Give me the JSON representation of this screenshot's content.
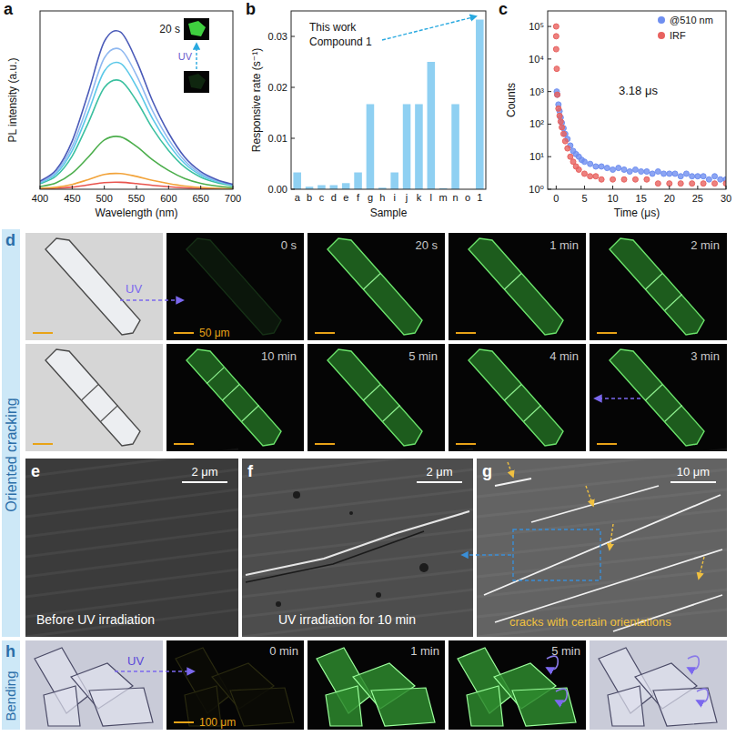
{
  "chart_data": [
    {
      "panel_label": "a",
      "type": "line",
      "x_label": "Wavelength (nm)",
      "y_label": "PL intensity (a.u.)",
      "x": [
        400,
        425,
        450,
        475,
        500,
        525,
        550,
        575,
        600,
        625,
        650,
        675,
        700
      ],
      "series": [
        {
          "color": "#e8544e",
          "values": [
            0.002,
            0.005,
            0.012,
            0.024,
            0.037,
            0.039,
            0.032,
            0.022,
            0.014,
            0.008,
            0.004,
            0.002,
            0.001
          ]
        },
        {
          "color": "#f2a33a",
          "values": [
            0.005,
            0.011,
            0.027,
            0.054,
            0.083,
            0.088,
            0.072,
            0.05,
            0.032,
            0.018,
            0.01,
            0.005,
            0.003
          ]
        },
        {
          "color": "#4cae4c",
          "values": [
            0.015,
            0.036,
            0.09,
            0.18,
            0.276,
            0.294,
            0.24,
            0.165,
            0.105,
            0.06,
            0.033,
            0.018,
            0.009
          ]
        },
        {
          "color": "#3cc0a0",
          "values": [
            0.031,
            0.074,
            0.186,
            0.372,
            0.57,
            0.608,
            0.496,
            0.341,
            0.217,
            0.124,
            0.068,
            0.037,
            0.019
          ]
        },
        {
          "color": "#5bc8e8",
          "values": [
            0.036,
            0.086,
            0.216,
            0.432,
            0.662,
            0.706,
            0.576,
            0.396,
            0.252,
            0.144,
            0.079,
            0.043,
            0.022
          ]
        },
        {
          "color": "#8fb8f0",
          "values": [
            0.04,
            0.096,
            0.24,
            0.48,
            0.736,
            0.784,
            0.64,
            0.44,
            0.28,
            0.16,
            0.088,
            0.048,
            0.024
          ]
        },
        {
          "color": "#4a5ab8",
          "values": [
            0.045,
            0.108,
            0.27,
            0.54,
            0.828,
            0.882,
            0.72,
            0.495,
            0.315,
            0.18,
            0.099,
            0.054,
            0.027
          ]
        }
      ],
      "xlim": [
        400,
        700
      ],
      "xticks": [
        400,
        450,
        500,
        550,
        600,
        650,
        700
      ],
      "ylim": [
        0,
        1
      ],
      "tick_labels": "x",
      "annotations": [
        "20 s",
        "UV"
      ]
    },
    {
      "panel_label": "b",
      "type": "bar",
      "x_label": "Sample",
      "y_label": "Responsive rate (s⁻¹)",
      "categories": [
        "a",
        "b",
        "c",
        "d",
        "e",
        "f",
        "g",
        "h",
        "i",
        "j",
        "k",
        "l",
        "m",
        "n",
        "o",
        "1"
      ],
      "values": [
        0.0033,
        0.0005,
        0.0008,
        0.0008,
        0.0012,
        0.0033,
        0.0167,
        0.0003,
        0.0033,
        0.0167,
        0.0167,
        0.025,
        0.0002,
        0.0167,
        0,
        0.0333
      ],
      "color": "#8fd0f2",
      "ylim": [
        0,
        0.035
      ],
      "yticks": [
        {
          "value": 0,
          "label": "0.00"
        },
        0.01,
        0.02,
        0.03
      ],
      "annotations": [
        "This work",
        "Compound 1"
      ]
    },
    {
      "panel_label": "c",
      "type": "scatter",
      "x_label": "Time (μs)",
      "y_label": "Counts",
      "log": "y",
      "series": [
        {
          "name": "@510 nm",
          "color": "#6f8ff0",
          "marker": "circle",
          "x": [
            0.1,
            0.2,
            0.4,
            0.6,
            0.8,
            1.0,
            1.3,
            1.6,
            2.0,
            2.5,
            3.0,
            3.5,
            4.0,
            4.5,
            5,
            6,
            7,
            8,
            9,
            10,
            11,
            12,
            13,
            14,
            15,
            16,
            17,
            18,
            19,
            20,
            21,
            22,
            23,
            24,
            25,
            26,
            27,
            28,
            29,
            30
          ],
          "values": [
            1000,
            800,
            400,
            250,
            160,
            110,
            75,
            50,
            35,
            22,
            15,
            12,
            10,
            8,
            7,
            6,
            5,
            5,
            4.5,
            4,
            4.5,
            4,
            3.5,
            4,
            3.5,
            3.5,
            3,
            3.5,
            3,
            3,
            3,
            2.5,
            3,
            2.5,
            2.5,
            2.5,
            2,
            2.5,
            2,
            2
          ]
        },
        {
          "name": "IRF",
          "color": "#e8625f",
          "marker": "circle",
          "x": [
            0,
            0,
            0,
            0.1,
            0.2,
            0.4,
            0.6,
            0.8,
            1.0,
            1.3,
            1.6,
            2.0,
            2.5,
            3.0,
            3.5,
            4,
            5,
            6,
            7,
            8,
            10,
            12,
            14,
            16,
            18,
            20,
            22,
            24,
            26,
            28,
            30
          ],
          "values": [
            100000,
            50000,
            20000,
            5000,
            800,
            300,
            180,
            120,
            80,
            50,
            30,
            18,
            10,
            7,
            5,
            4,
            3,
            2.5,
            2.5,
            2,
            2,
            2,
            2,
            2,
            1.5,
            1.5,
            1.5,
            1.5,
            1.5,
            1.5,
            1.5
          ]
        }
      ],
      "xlim": [
        -1.5,
        30
      ],
      "xticks": [
        0,
        5,
        10,
        15,
        20,
        25,
        30
      ],
      "ylim": [
        1,
        300000
      ],
      "yticks": [
        {
          "value": 1,
          "label": "10⁰"
        },
        {
          "value": 10,
          "label": "10¹"
        },
        {
          "value": 100,
          "label": "10²"
        },
        {
          "value": 1000,
          "label": "10³"
        },
        {
          "value": 10000,
          "label": "10⁴"
        },
        {
          "value": 100000,
          "label": "10⁵"
        }
      ],
      "legend": "top-right",
      "annotations": [
        "3.18 μs"
      ]
    }
  ],
  "figure": {
    "row_labels": [
      "Oriented cracking",
      "Bending"
    ],
    "d": {
      "panel_label": "d",
      "uv": "UV",
      "scale_bar": "50 μm",
      "top_times": [
        "0 s",
        "20 s",
        "1 min",
        "2 min"
      ],
      "bottom_times": [
        "10 min",
        "5 min",
        "4 min",
        "3 min"
      ]
    },
    "e": {
      "panel_label": "e",
      "scale_bar": "2 μm",
      "caption": "Before UV irradiation"
    },
    "f": {
      "panel_label": "f",
      "scale_bar": "2 μm",
      "caption": "UV irradiation for 10 min"
    },
    "g": {
      "panel_label": "g",
      "scale_bar": "10 μm",
      "caption": "cracks with certain orientations"
    },
    "h": {
      "panel_label": "h",
      "uv": "UV",
      "scale_bar": "100 μm",
      "times": [
        "0 min",
        "1 min",
        "5 min"
      ]
    }
  }
}
